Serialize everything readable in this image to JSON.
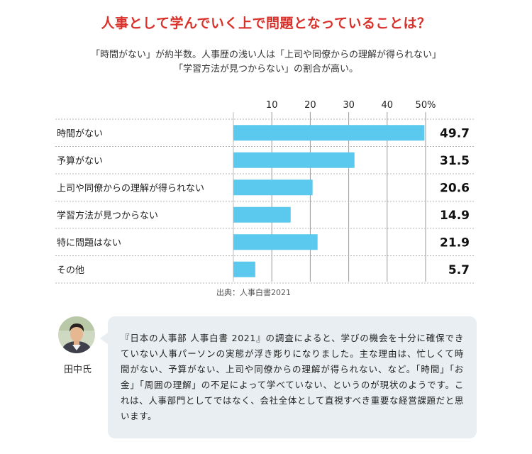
{
  "title": "人事として学んでいく上で問題となっていることは？",
  "subtitle_line1": "「時間がない」が約半数。人事歴の浅い人は「上司や同僚からの理解が得られない」",
  "subtitle_line2": "「学習方法が見つからない」の割合が高い。",
  "chart_data": {
    "type": "bar",
    "orientation": "horizontal",
    "categories": [
      "時間がない",
      "予算がない",
      "上司や同僚からの理解が得られない",
      "学習方法が見つからない",
      "特に問題はない",
      "その他"
    ],
    "values": [
      49.7,
      31.5,
      20.6,
      14.9,
      21.9,
      5.7
    ],
    "value_labels": [
      "49.7",
      "31.5",
      "20.6",
      "14.9",
      "21.9",
      "5.7"
    ],
    "xlim": [
      0,
      50
    ],
    "ticks": [
      10,
      20,
      30,
      40,
      50
    ],
    "tick_labels": [
      "10",
      "20",
      "30",
      "40",
      "50%"
    ],
    "grid": true,
    "bar_color": "#5bc8ee"
  },
  "source": "出典：人事白書2021",
  "person": {
    "name": "田中氏",
    "avatar_icon": "person-avatar-icon",
    "comment": "『日本の人事部 人事白書 2021』の調査によると、学びの機会を十分に確保できていない人事パーソンの実態が浮き彫りになりました。主な理由は、忙しくて時間がない、予算がない、上司や同僚からの理解が得られない、など。「時間」「お金」「周囲の理解」の不足によって学べていない、というのが現状のようです。これは、人事部門としてではなく、会社全体として直視すべき重要な経営課題だと思います。"
  },
  "colors": {
    "title": "#d9302a",
    "bar": "#5bc8ee",
    "bubble": "#e8eef1"
  }
}
